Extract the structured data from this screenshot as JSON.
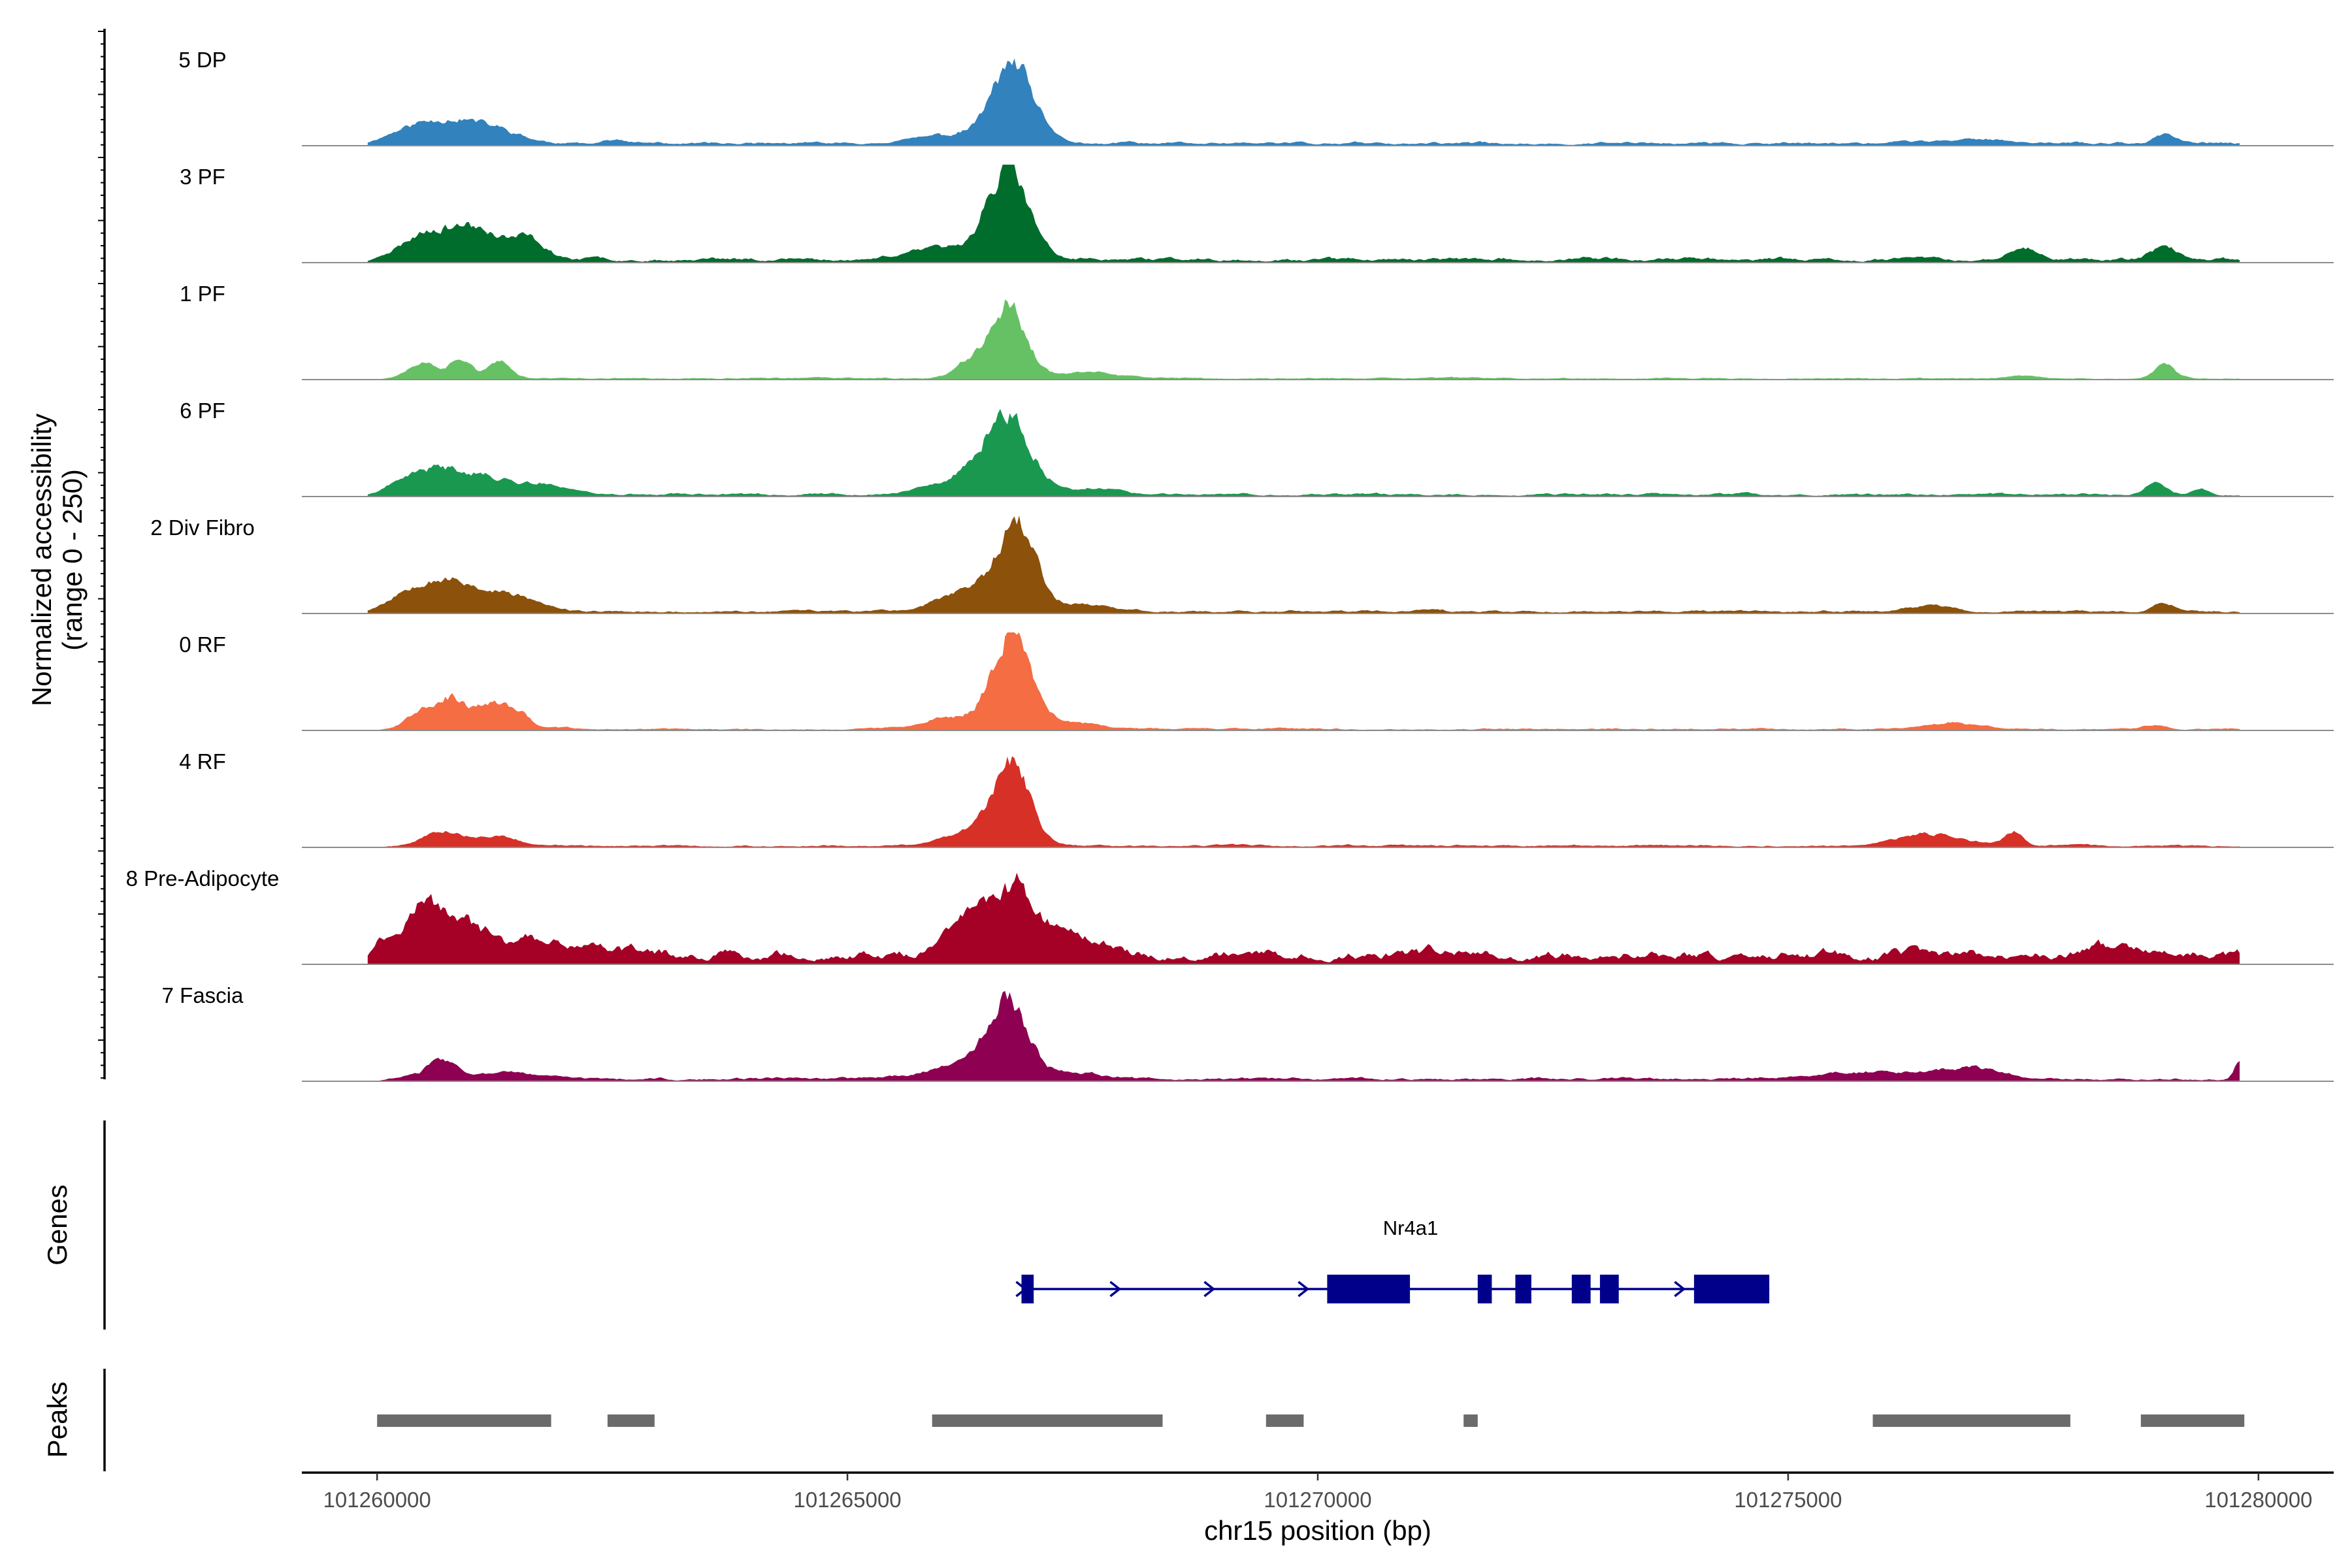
{
  "chart_data": {
    "type": "area",
    "title": "",
    "ylabel_line1": "Normalized accessibility",
    "ylabel_line2": "(range 0 - 250)",
    "xlabel": "chr15 position (bp)",
    "xlim": [
      101259200,
      101280800
    ],
    "ylim": [
      0,
      250
    ],
    "x_ticks": [
      101260000,
      101265000,
      101270000,
      101275000,
      101280000
    ],
    "x_tick_labels": [
      "101260000",
      "101265000",
      "101270000",
      "101275000",
      "101280000"
    ],
    "region": {
      "start": 101259900,
      "end": 101279800
    },
    "series": [
      {
        "name": "5 DP",
        "color": "#3182BD",
        "peaks": [
          [
            101260500,
            50,
            330
          ],
          [
            101261000,
            40,
            260
          ],
          [
            101261400,
            20,
            220
          ],
          [
            101262500,
            10,
            120
          ],
          [
            101266000,
            20,
            350
          ],
          [
            101266750,
            200,
            220
          ],
          [
            101277000,
            10,
            400
          ],
          [
            101279000,
            25,
            100
          ]
        ],
        "noise": 12,
        "seed": 11
      },
      {
        "name": "3 PF",
        "color": "#006D2C",
        "peaks": [
          [
            101260600,
            75,
            300
          ],
          [
            101261100,
            60,
            230
          ],
          [
            101261600,
            50,
            180
          ],
          [
            101266000,
            30,
            350
          ],
          [
            101266700,
            230,
            220
          ],
          [
            101277500,
            30,
            160
          ],
          [
            101279000,
            35,
            140
          ]
        ],
        "noise": 16,
        "seed": 23
      },
      {
        "name": "1 PF",
        "color": "#66C164",
        "peaks": [
          [
            101260500,
            40,
            160
          ],
          [
            101260900,
            50,
            110
          ],
          [
            101261300,
            40,
            120
          ],
          [
            101266300,
            40,
            150
          ],
          [
            101266700,
            190,
            190
          ],
          [
            101267500,
            15,
            300
          ],
          [
            101277500,
            10,
            150
          ],
          [
            101279000,
            35,
            110
          ]
        ],
        "noise": 6,
        "seed": 37
      },
      {
        "name": "6 PF",
        "color": "#1A9850",
        "peaks": [
          [
            101260500,
            55,
            280
          ],
          [
            101261000,
            45,
            280
          ],
          [
            101261600,
            25,
            280
          ],
          [
            101262000,
            10,
            200
          ],
          [
            101266200,
            35,
            350
          ],
          [
            101266700,
            190,
            240
          ],
          [
            101267600,
            15,
            300
          ],
          [
            101278900,
            25,
            110
          ],
          [
            101279400,
            15,
            80
          ]
        ],
        "noise": 10,
        "seed": 41
      },
      {
        "name": "2 Div Fibro",
        "color": "#8C510A",
        "peaks": [
          [
            101260500,
            70,
            300
          ],
          [
            101261000,
            45,
            300
          ],
          [
            101261500,
            30,
            250
          ],
          [
            101266300,
            60,
            300
          ],
          [
            101266800,
            230,
            190
          ],
          [
            101267500,
            20,
            300
          ],
          [
            101276500,
            15,
            200
          ],
          [
            101279000,
            20,
            120
          ]
        ],
        "noise": 10,
        "seed": 53
      },
      {
        "name": "0 RF",
        "color": "#F46D43",
        "peaks": [
          [
            101260500,
            55,
            160
          ],
          [
            101260800,
            70,
            140
          ],
          [
            101261200,
            60,
            160
          ],
          [
            101261500,
            40,
            130
          ],
          [
            101266100,
            30,
            300
          ],
          [
            101266750,
            250,
            200
          ],
          [
            101267400,
            15,
            300
          ],
          [
            101276700,
            15,
            300
          ],
          [
            101278900,
            10,
            100
          ]
        ],
        "noise": 7,
        "seed": 67
      },
      {
        "name": "4 RF",
        "color": "#D73027",
        "peaks": [
          [
            101260700,
            40,
            200
          ],
          [
            101261300,
            25,
            200
          ],
          [
            101266300,
            40,
            250
          ],
          [
            101266750,
            210,
            190
          ],
          [
            101276500,
            30,
            350
          ],
          [
            101277400,
            35,
            100
          ]
        ],
        "noise": 8,
        "seed": 79
      },
      {
        "name": "8 Pre-Adipocyte",
        "color": "#A50026",
        "peaks": [
          [
            101260000,
            40,
            80
          ],
          [
            101260500,
            140,
            260
          ],
          [
            101261000,
            70,
            200
          ],
          [
            101261700,
            40,
            250
          ],
          [
            101262300,
            25,
            200
          ],
          [
            101266300,
            110,
            250
          ],
          [
            101266800,
            160,
            220
          ],
          [
            101267400,
            60,
            280
          ],
          [
            101278500,
            25,
            300
          ]
        ],
        "noise": 45,
        "seed": 97
      },
      {
        "name": "7 Fascia",
        "color": "#8E0152",
        "peaks": [
          [
            101260700,
            45,
            160
          ],
          [
            101261400,
            20,
            250
          ],
          [
            101266200,
            35,
            350
          ],
          [
            101266700,
            200,
            200
          ],
          [
            101267400,
            15,
            300
          ],
          [
            101276000,
            20,
            600
          ],
          [
            101277000,
            25,
            300
          ],
          [
            101279800,
            45,
            60
          ]
        ],
        "noise": 12,
        "seed": 103
      }
    ],
    "genes_track": {
      "title": "Genes",
      "gene_name": "Nr4a1",
      "color": "#00008B",
      "start": 101266850,
      "end": 101274800,
      "exons": [
        [
          101266850,
          101266980
        ],
        [
          101270100,
          101270980
        ],
        [
          101271700,
          101271850
        ],
        [
          101272100,
          101272270
        ],
        [
          101272700,
          101272900
        ],
        [
          101273000,
          101273200
        ],
        [
          101274000,
          101274800
        ]
      ],
      "arrows": [
        101266850,
        101267850,
        101268850,
        101269850,
        101273850
      ]
    },
    "peaks_track": {
      "title": "Peaks",
      "color": "#6B6B6B",
      "intervals": [
        [
          101260000,
          101261850
        ],
        [
          101262450,
          101262950
        ],
        [
          101265900,
          101268350
        ],
        [
          101269450,
          101269850
        ],
        [
          101271550,
          101271700
        ],
        [
          101275900,
          101278000
        ],
        [
          101278750,
          101279850
        ]
      ]
    }
  }
}
